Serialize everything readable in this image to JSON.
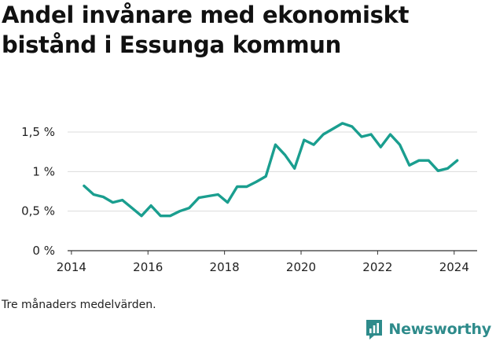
{
  "title": "Andel invånare med ekonomiskt bistånd i Essunga kommun",
  "caption": "Tre månaders medelvärden.",
  "brand": {
    "name": "Newsworthy",
    "icon": "chart-bubble-icon",
    "color": "#2e8b8b"
  },
  "chart_data": {
    "type": "line",
    "title": "Andel invånare med ekonomiskt bistånd i Essunga kommun",
    "xlabel": "",
    "ylabel": "",
    "xlim": [
      2013.9,
      2024.6
    ],
    "ylim": [
      0,
      1.5
    ],
    "x_ticks": [
      2014,
      2016,
      2018,
      2020,
      2022,
      2024
    ],
    "x_tick_labels": [
      "2014",
      "2016",
      "2018",
      "2020",
      "2022",
      "2024"
    ],
    "y_ticks": [
      0,
      0.5,
      1,
      1.5
    ],
    "y_tick_labels": [
      "0 %",
      "0,5 %",
      "1 %",
      "1,5 %"
    ],
    "grid": true,
    "line_color": "#1a9e8f",
    "series": [
      {
        "x": [
          2014.33,
          2014.58,
          2014.83,
          2015.08,
          2015.33,
          2015.58,
          2015.83,
          2016.08,
          2016.33,
          2016.58,
          2016.83,
          2017.08,
          2017.33,
          2017.58,
          2017.83,
          2018.08,
          2018.33,
          2018.58,
          2018.83,
          2019.08,
          2019.33,
          2019.58,
          2019.83,
          2020.08,
          2020.33,
          2020.58,
          2020.83,
          2021.08,
          2021.33,
          2021.58,
          2021.83,
          2022.08,
          2022.33,
          2022.58,
          2022.83,
          2023.08,
          2023.33,
          2023.58,
          2023.83,
          2024.08
        ],
        "values": [
          0.82,
          0.71,
          0.68,
          0.61,
          0.64,
          0.54,
          0.44,
          0.57,
          0.44,
          0.44,
          0.5,
          0.54,
          0.67,
          0.69,
          0.71,
          0.61,
          0.81,
          0.81,
          0.87,
          0.94,
          1.34,
          1.21,
          1.04,
          1.4,
          1.34,
          1.47,
          1.54,
          1.61,
          1.57,
          1.44,
          1.47,
          1.31,
          1.47,
          1.34,
          1.08,
          1.14,
          1.14,
          1.01,
          1.04,
          1.14
        ]
      }
    ]
  }
}
